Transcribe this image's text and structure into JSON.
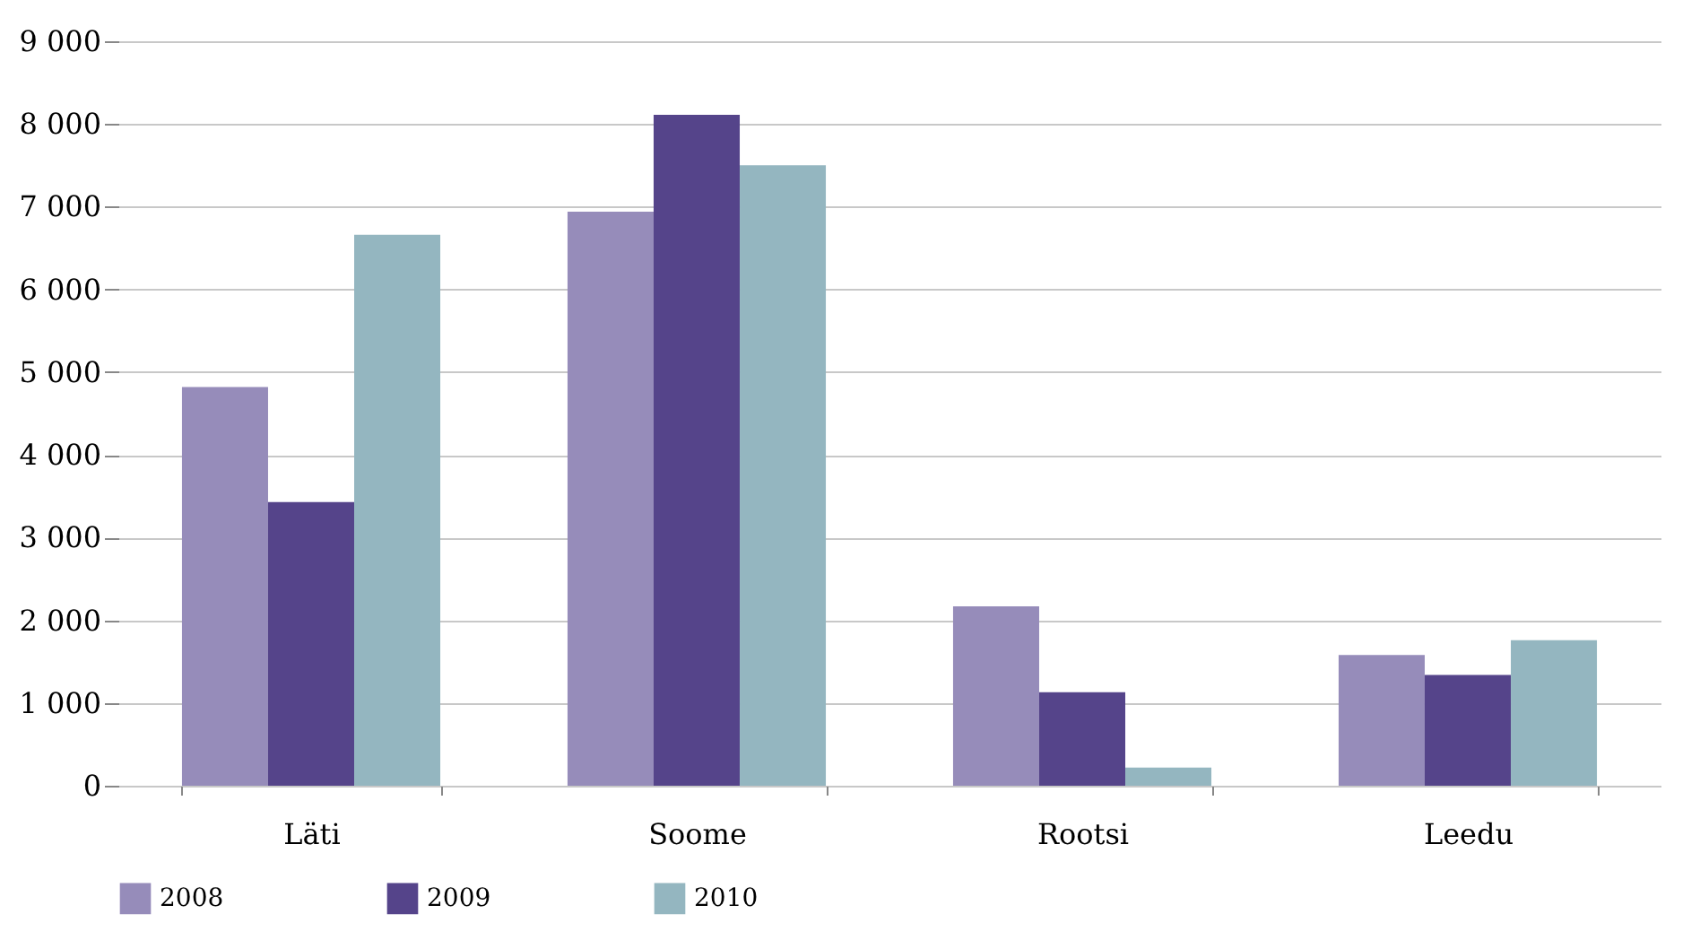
{
  "chart_data": {
    "type": "bar",
    "categories": [
      "Läti",
      "Soome",
      "Rootsi",
      "Leedu"
    ],
    "series": [
      {
        "name": "2008",
        "color": "#968cba",
        "values": [
          4820,
          6940,
          2170,
          1580
        ]
      },
      {
        "name": "2009",
        "color": "#55448a",
        "values": [
          3430,
          8110,
          1130,
          1340
        ]
      },
      {
        "name": "2010",
        "color": "#94b6c0",
        "values": [
          6660,
          7500,
          220,
          1760
        ]
      }
    ],
    "ylim": [
      0,
      9000
    ],
    "yticks": [
      {
        "value": 0,
        "label": "0"
      },
      {
        "value": 1000,
        "label": "1 000"
      },
      {
        "value": 2000,
        "label": "2 000"
      },
      {
        "value": 3000,
        "label": "3 000"
      },
      {
        "value": 4000,
        "label": "4 000"
      },
      {
        "value": 5000,
        "label": "5 000"
      },
      {
        "value": 6000,
        "label": "6 000"
      },
      {
        "value": 7000,
        "label": "7 000"
      },
      {
        "value": 8000,
        "label": "8 000"
      },
      {
        "value": 9000,
        "label": "9 000"
      }
    ],
    "grid": "y",
    "legend": "bottom"
  }
}
